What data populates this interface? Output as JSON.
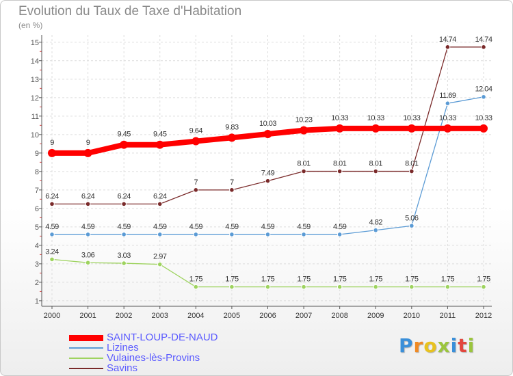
{
  "title": "Evolution du Taux de Taxe d'Habitation",
  "unit_label": "(en %)",
  "logo": {
    "text": "Proxiti",
    "letter_colors": [
      "#3a8fd9",
      "#f08a24",
      "#e8c21f",
      "#9bc53d",
      "#3a8fd9",
      "#e2473e",
      "#9bc53d"
    ]
  },
  "chart_data": {
    "type": "line",
    "x": [
      "2000",
      "2001",
      "2002",
      "2003",
      "2004",
      "2005",
      "2006",
      "2007",
      "2008",
      "2009",
      "2010",
      "2011",
      "2012"
    ],
    "yticks": [
      "1",
      "2",
      "3",
      "4",
      "5",
      "6",
      "7",
      "8",
      "9",
      "10",
      "11",
      "12",
      "13",
      "14",
      "15"
    ],
    "ylim": [
      0.7,
      15.4
    ],
    "grid": true,
    "legend_position": "bottom-left",
    "series": [
      {
        "name": "SAINT-LOUP-DE-NAUD",
        "color": "#ff0000",
        "values": [
          9,
          9,
          9.45,
          9.45,
          9.64,
          9.83,
          10.03,
          10.23,
          10.33,
          10.33,
          10.33,
          10.33,
          10.33
        ],
        "labels": [
          "9",
          "9",
          "9.45",
          "9.45",
          "9.64",
          "9.83",
          "10.03",
          "10.23",
          "10.33",
          "10.33",
          "10.33",
          "10.33",
          "10.33"
        ]
      },
      {
        "name": "Lizines",
        "color": "#5b9bd5",
        "values": [
          4.59,
          4.59,
          4.59,
          4.59,
          4.59,
          4.59,
          4.59,
          4.59,
          4.59,
          4.82,
          5.06,
          11.69,
          12.04
        ],
        "labels": [
          "4.59",
          "4.59",
          "4.59",
          "4.59",
          "4.59",
          "4.59",
          "4.59",
          "4.59",
          "4.59",
          "4.82",
          "5.06",
          "11.69",
          "12.04"
        ]
      },
      {
        "name": "Vulaines-lès-Provins",
        "color": "#9ed35f",
        "values": [
          3.24,
          3.06,
          3.03,
          2.97,
          1.75,
          1.75,
          1.75,
          1.75,
          1.75,
          1.75,
          1.75,
          1.75,
          1.75
        ],
        "labels": [
          "3.24",
          "3.06",
          "3.03",
          "2.97",
          "1.75",
          "1.75",
          "1.75",
          "1.75",
          "1.75",
          "1.75",
          "1.75",
          "1.75",
          "1.75"
        ]
      },
      {
        "name": "Savins",
        "color": "#7a2a2a",
        "values": [
          6.24,
          6.24,
          6.24,
          6.24,
          7,
          7,
          7.49,
          8.01,
          8.01,
          8.01,
          8.01,
          14.74,
          14.74
        ],
        "labels": [
          "6.24",
          "6.24",
          "6.24",
          "6.24",
          "7",
          "7",
          "7.49",
          "8.01",
          "8.01",
          "8.01",
          "8.01",
          "14.74",
          "14.74"
        ]
      }
    ]
  }
}
